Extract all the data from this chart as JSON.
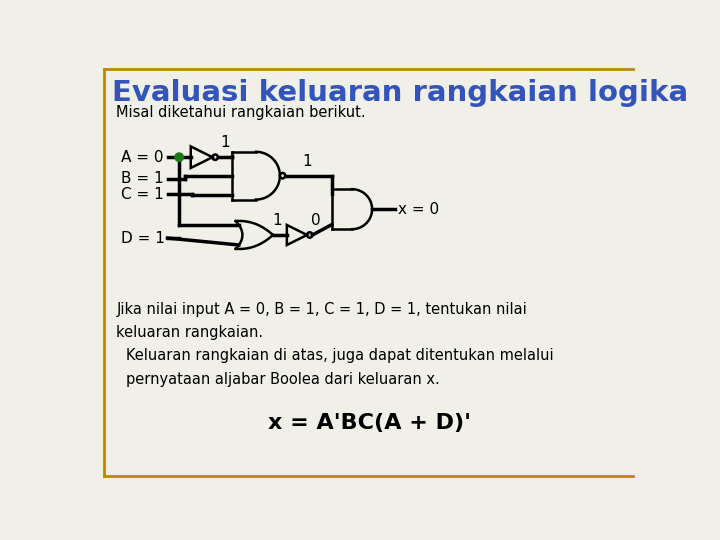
{
  "title": "Evaluasi keluaran rangkaian logika",
  "subtitle": "Misal diketahui rangkaian berikut.",
  "title_color": "#3355bb",
  "title_fontsize": 21,
  "bg_color": "#f0f0e8",
  "border_color": "#bb8800",
  "inputs": [
    "A = 0",
    "B = 1",
    "C = 1",
    "D = 1"
  ],
  "output_label": "x = 0",
  "text1": "Jika nilai input A = 0, B = 1, C = 1, D = 1, tentukan nilai\nkeluaran rangkaian.",
  "text2": "Keluaran rangkaian di atas, juga dapat ditentukan melalui\npernyataan aljabar Boolea dari keluaran x.",
  "formula": "x = A'BC(A + D)'",
  "lw_wire": 2.5,
  "lw_gate": 1.8
}
